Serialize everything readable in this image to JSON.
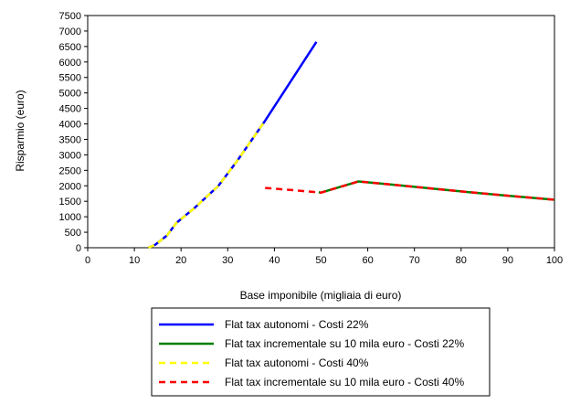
{
  "chart_data": {
    "type": "line",
    "title": "",
    "xlabel": "Base imponibile  (migliaia di euro)",
    "ylabel": "Risparmio (euro)",
    "xlim": [
      0,
      100
    ],
    "ylim": [
      0,
      7500
    ],
    "xticks": [
      "0",
      "10",
      "20",
      "30",
      "40",
      "50",
      "60",
      "70",
      "80",
      "90",
      "100"
    ],
    "yticks": [
      "0",
      "500",
      "1000",
      "1500",
      "2000",
      "2500",
      "3000",
      "3500",
      "4000",
      "4500",
      "5000",
      "5500",
      "6000",
      "6500",
      "7000",
      "7500"
    ],
    "grid": false,
    "legend_position": "bottom",
    "series": [
      {
        "name": "Flat tax autonomi - Costi 22%",
        "color": "#0000ff",
        "style": "solid",
        "points": [
          [
            13,
            0
          ],
          [
            14.5,
            100
          ],
          [
            17,
            400
          ],
          [
            19,
            800
          ],
          [
            23,
            1300
          ],
          [
            28,
            2000
          ],
          [
            32,
            2800
          ],
          [
            38,
            4100
          ],
          [
            49,
            6650
          ]
        ]
      },
      {
        "name": "Flat tax incrementale su 10 mila euro - Costi 22%",
        "color": "#008000",
        "style": "solid",
        "points": [
          [
            49.5,
            1790
          ],
          [
            50,
            1780
          ],
          [
            58,
            2140
          ],
          [
            65,
            2040
          ],
          [
            80,
            1820
          ],
          [
            90,
            1680
          ],
          [
            100,
            1550
          ]
        ]
      },
      {
        "name": "Flat tax autonomi - Costi 40%",
        "color": "#ffff00",
        "style": "dashed",
        "points": [
          [
            13,
            0
          ],
          [
            14.5,
            100
          ],
          [
            17,
            400
          ],
          [
            19,
            800
          ],
          [
            23,
            1300
          ],
          [
            28,
            2000
          ],
          [
            32,
            2800
          ],
          [
            38,
            4100
          ]
        ]
      },
      {
        "name": "Flat tax incrementale su 10 mila euro - Costi 40%",
        "color": "#ff0000",
        "style": "dashed",
        "points": [
          [
            38,
            1930
          ],
          [
            44,
            1860
          ],
          [
            50,
            1780
          ],
          [
            58,
            2140
          ],
          [
            65,
            2040
          ],
          [
            80,
            1820
          ],
          [
            90,
            1680
          ],
          [
            100,
            1550
          ]
        ]
      }
    ]
  }
}
